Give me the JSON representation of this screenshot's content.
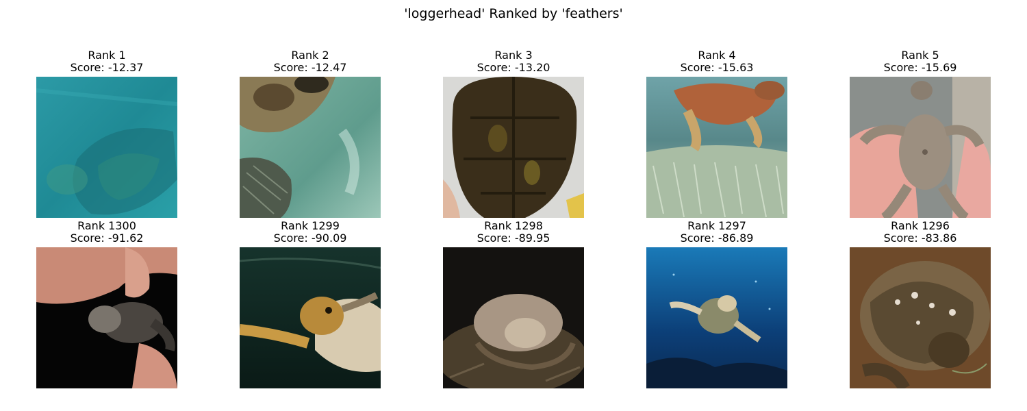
{
  "figure": {
    "title": "'loggerhead' Ranked by 'feathers'"
  },
  "top_row": [
    {
      "rank": "Rank 1",
      "score": "Score: -12.37",
      "scene": "turtle-underwater-teal"
    },
    {
      "rank": "Rank 2",
      "score": "Score: -12.47",
      "scene": "turtle-shallow-green"
    },
    {
      "rank": "Rank 3",
      "score": "Score: -13.20",
      "scene": "turtle-shell-closeup"
    },
    {
      "rank": "Rank 4",
      "score": "Score: -15.63",
      "scene": "turtle-over-seagrass"
    },
    {
      "rank": "Rank 5",
      "score": "Score: -15.69",
      "scene": "hatchling-in-hand"
    }
  ],
  "bottom_row": [
    {
      "rank": "Rank 1300",
      "score": "Score: -91.62",
      "scene": "hatchling-held-fingers"
    },
    {
      "rank": "Rank 1299",
      "score": "Score: -90.09",
      "scene": "turtle-swimming-dark-water"
    },
    {
      "rank": "Rank 1298",
      "score": "Score: -89.95",
      "scene": "turtle-nesting-night"
    },
    {
      "rank": "Rank 1297",
      "score": "Score: -86.89",
      "scene": "turtle-deep-blue-ocean"
    },
    {
      "rank": "Rank 1296",
      "score": "Score: -83.86",
      "scene": "turtle-on-sand-barnacles"
    }
  ]
}
